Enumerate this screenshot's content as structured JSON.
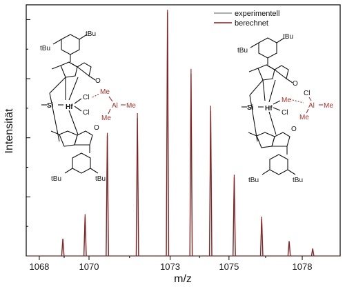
{
  "chart_data": {
    "type": "line",
    "xlabel": "m/z",
    "ylabel": "Intensität",
    "xlim": [
      1067.5,
      1079.5
    ],
    "ylim": [
      0,
      1.02
    ],
    "x_ticks": [
      "1068",
      "1070",
      "1073",
      "1075",
      "1078"
    ],
    "x_tick_values": [
      1068,
      1069.9,
      1073.0,
      1075.25,
      1078.05
    ],
    "legend_position": "top-right",
    "grid": false,
    "series": [
      {
        "name": "experimentell",
        "color": "#909090",
        "peaks": [
          {
            "x": 1068.9,
            "y": 0.07
          },
          {
            "x": 1069.75,
            "y": 0.16
          },
          {
            "x": 1070.6,
            "y": 0.49
          },
          {
            "x": 1071.75,
            "y": 0.56
          },
          {
            "x": 1072.9,
            "y": 0.99
          },
          {
            "x": 1073.8,
            "y": 0.74
          },
          {
            "x": 1074.55,
            "y": 0.59
          },
          {
            "x": 1075.45,
            "y": 0.32
          },
          {
            "x": 1076.5,
            "y": 0.15
          },
          {
            "x": 1077.55,
            "y": 0.06
          },
          {
            "x": 1078.45,
            "y": 0.03
          }
        ]
      },
      {
        "name": "berechnet",
        "color": "#8b1a1a",
        "peaks": [
          {
            "x": 1068.9,
            "y": 0.07
          },
          {
            "x": 1069.75,
            "y": 0.17
          },
          {
            "x": 1070.6,
            "y": 0.5
          },
          {
            "x": 1071.75,
            "y": 0.58
          },
          {
            "x": 1072.9,
            "y": 1.0
          },
          {
            "x": 1073.8,
            "y": 0.76
          },
          {
            "x": 1074.55,
            "y": 0.61
          },
          {
            "x": 1075.45,
            "y": 0.33
          },
          {
            "x": 1076.5,
            "y": 0.16
          },
          {
            "x": 1077.55,
            "y": 0.06
          },
          {
            "x": 1078.45,
            "y": 0.03
          }
        ]
      }
    ]
  },
  "structures": {
    "left": {
      "tbu_top_left": "tBu",
      "tbu_top_right": "tBu",
      "oxy_top": "O",
      "si": "Si",
      "hf": "Hf",
      "cl_top": "Cl",
      "cl_bottom": "Cl",
      "me_top": "Me",
      "al": "Al",
      "me_right": "Me",
      "me_bottom": "Me",
      "oxy_bottom": "O",
      "tbu_bottom_left": "tBu",
      "tbu_bottom_right": "tBu"
    },
    "right": {
      "tbu_top_left": "tBu",
      "tbu_top_right": "tBu",
      "oxy_top": "O",
      "si": "Si",
      "hf": "Hf",
      "me_hf": "Me",
      "cl_bottom": "Cl",
      "cl_al": "Cl",
      "al": "Al",
      "me_right": "Me",
      "me_bottom": "Me",
      "oxy_bottom": "O",
      "tbu_bottom_left": "tBu",
      "tbu_bottom_right": "tBu"
    }
  }
}
